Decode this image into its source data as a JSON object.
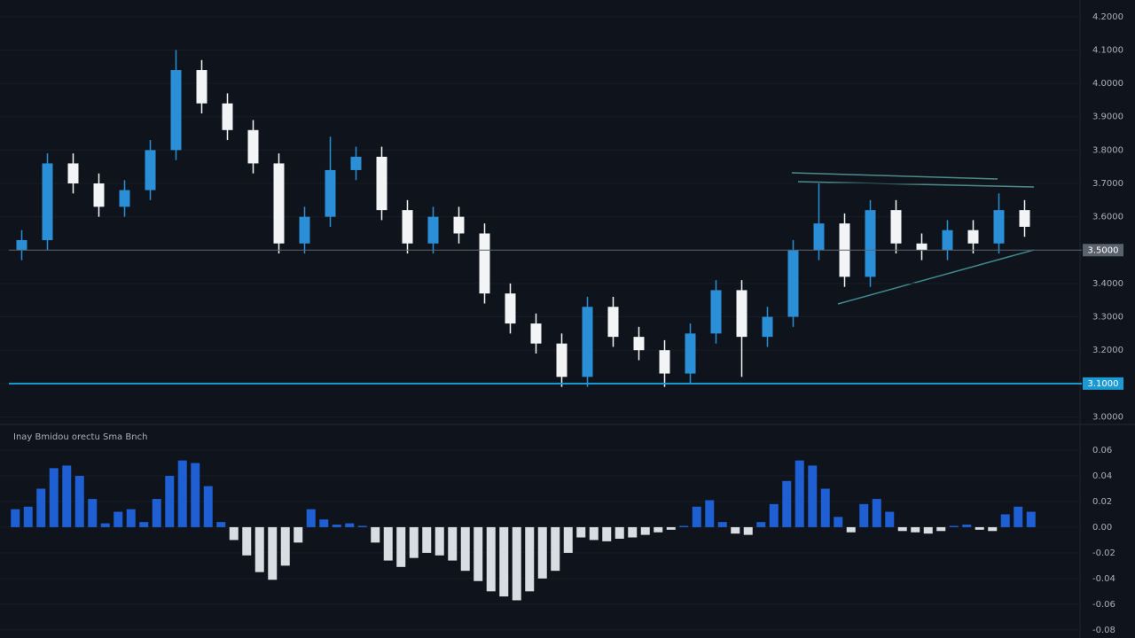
{
  "chart_data": [
    {
      "type": "candlestick",
      "open": [
        3.5,
        3.53,
        3.76,
        3.7,
        3.63,
        3.68,
        3.8,
        4.04,
        3.94,
        3.86,
        3.76,
        3.52,
        3.6,
        3.74,
        3.78,
        3.62,
        3.52,
        3.6,
        3.55,
        3.37,
        3.28,
        3.22,
        3.12,
        3.33,
        3.24,
        3.2,
        3.13,
        3.25,
        3.38,
        3.24,
        3.3,
        3.5,
        3.58,
        3.42,
        3.62,
        3.52,
        3.5,
        3.56,
        3.52,
        3.62
      ],
      "high": [
        3.56,
        3.79,
        3.79,
        3.73,
        3.71,
        3.83,
        4.1,
        4.07,
        3.97,
        3.89,
        3.79,
        3.63,
        3.84,
        3.81,
        3.81,
        3.65,
        3.63,
        3.63,
        3.58,
        3.4,
        3.31,
        3.25,
        3.36,
        3.36,
        3.27,
        3.23,
        3.28,
        3.41,
        3.41,
        3.33,
        3.53,
        3.7,
        3.61,
        3.65,
        3.65,
        3.55,
        3.59,
        3.59,
        3.67,
        3.65
      ],
      "low": [
        3.47,
        3.5,
        3.67,
        3.6,
        3.6,
        3.65,
        3.77,
        3.91,
        3.83,
        3.73,
        3.49,
        3.49,
        3.57,
        3.71,
        3.59,
        3.49,
        3.49,
        3.52,
        3.34,
        3.25,
        3.19,
        3.09,
        3.09,
        3.21,
        3.17,
        3.09,
        3.1,
        3.22,
        3.12,
        3.21,
        3.27,
        3.47,
        3.39,
        3.39,
        3.49,
        3.47,
        3.47,
        3.49,
        3.49,
        3.54
      ],
      "close": [
        3.53,
        3.76,
        3.7,
        3.63,
        3.68,
        3.8,
        4.04,
        3.94,
        3.86,
        3.76,
        3.52,
        3.6,
        3.74,
        3.78,
        3.62,
        3.52,
        3.6,
        3.55,
        3.37,
        3.28,
        3.22,
        3.12,
        3.33,
        3.24,
        3.2,
        3.13,
        3.25,
        3.38,
        3.24,
        3.3,
        3.5,
        3.58,
        3.42,
        3.62,
        3.52,
        3.5,
        3.56,
        3.52,
        3.62,
        3.57
      ],
      "up_color": "#2a8fd6",
      "down_color": "#f2f4f6",
      "ylim": [
        2.98,
        4.25
      ],
      "yticks": [
        {
          "value": 3.0,
          "label": "3.0000"
        },
        {
          "value": 3.1,
          "label": "3.1000"
        },
        {
          "value": 3.2,
          "label": "3.2000"
        },
        {
          "value": 3.3,
          "label": "3.3000"
        },
        {
          "value": 3.4,
          "label": "3.4000"
        },
        {
          "value": 3.5,
          "label": "3.5000"
        },
        {
          "value": 3.6,
          "label": "3.6000"
        },
        {
          "value": 3.7,
          "label": "3.7000"
        },
        {
          "value": 3.8,
          "label": "3.8000"
        },
        {
          "value": 3.9,
          "label": "3.9000"
        },
        {
          "value": 4.0,
          "label": "4.0000"
        },
        {
          "value": 4.1,
          "label": "4.1000"
        },
        {
          "value": 4.2,
          "label": "4.2000"
        }
      ],
      "price_lines": [
        {
          "value": 3.5,
          "label": "3.5000",
          "color": "#5a626d"
        },
        {
          "value": 3.1,
          "label": "3.1000",
          "color": "#1c9ad6"
        }
      ]
    },
    {
      "type": "bar",
      "title": "Inay Bmidou orectu Sma Bnch",
      "values": [
        0.014,
        0.016,
        0.03,
        0.046,
        0.048,
        0.04,
        0.022,
        0.003,
        0.012,
        0.014,
        0.004,
        0.022,
        0.04,
        0.052,
        0.05,
        0.032,
        0.004,
        -0.01,
        -0.022,
        -0.035,
        -0.041,
        -0.03,
        -0.012,
        0.014,
        0.006,
        0.002,
        0.003,
        0.001,
        -0.012,
        -0.026,
        -0.031,
        -0.024,
        -0.02,
        -0.022,
        -0.026,
        -0.034,
        -0.042,
        -0.05,
        -0.054,
        -0.057,
        -0.05,
        -0.04,
        -0.034,
        -0.02,
        -0.008,
        -0.01,
        -0.011,
        -0.009,
        -0.008,
        -0.006,
        -0.004,
        -0.002,
        0.001,
        0.016,
        0.021,
        0.004,
        -0.005,
        -0.006,
        0.004,
        0.018,
        0.036,
        0.052,
        0.048,
        0.03,
        0.008,
        -0.004,
        0.018,
        0.022,
        0.012,
        -0.003,
        -0.004,
        -0.005,
        -0.003,
        0.001,
        0.002,
        -0.002,
        -0.003,
        0.01,
        0.016,
        0.012
      ],
      "positive_color": "#1f5fd4",
      "negative_color": "#d8dde3",
      "ylim": [
        -0.085,
        0.078
      ],
      "yticks": [
        0.06,
        0.04,
        0.02,
        {
          "value": 0,
          "label": "0.00"
        },
        -0.02,
        -0.04,
        -0.06,
        -0.08
      ]
    }
  ]
}
